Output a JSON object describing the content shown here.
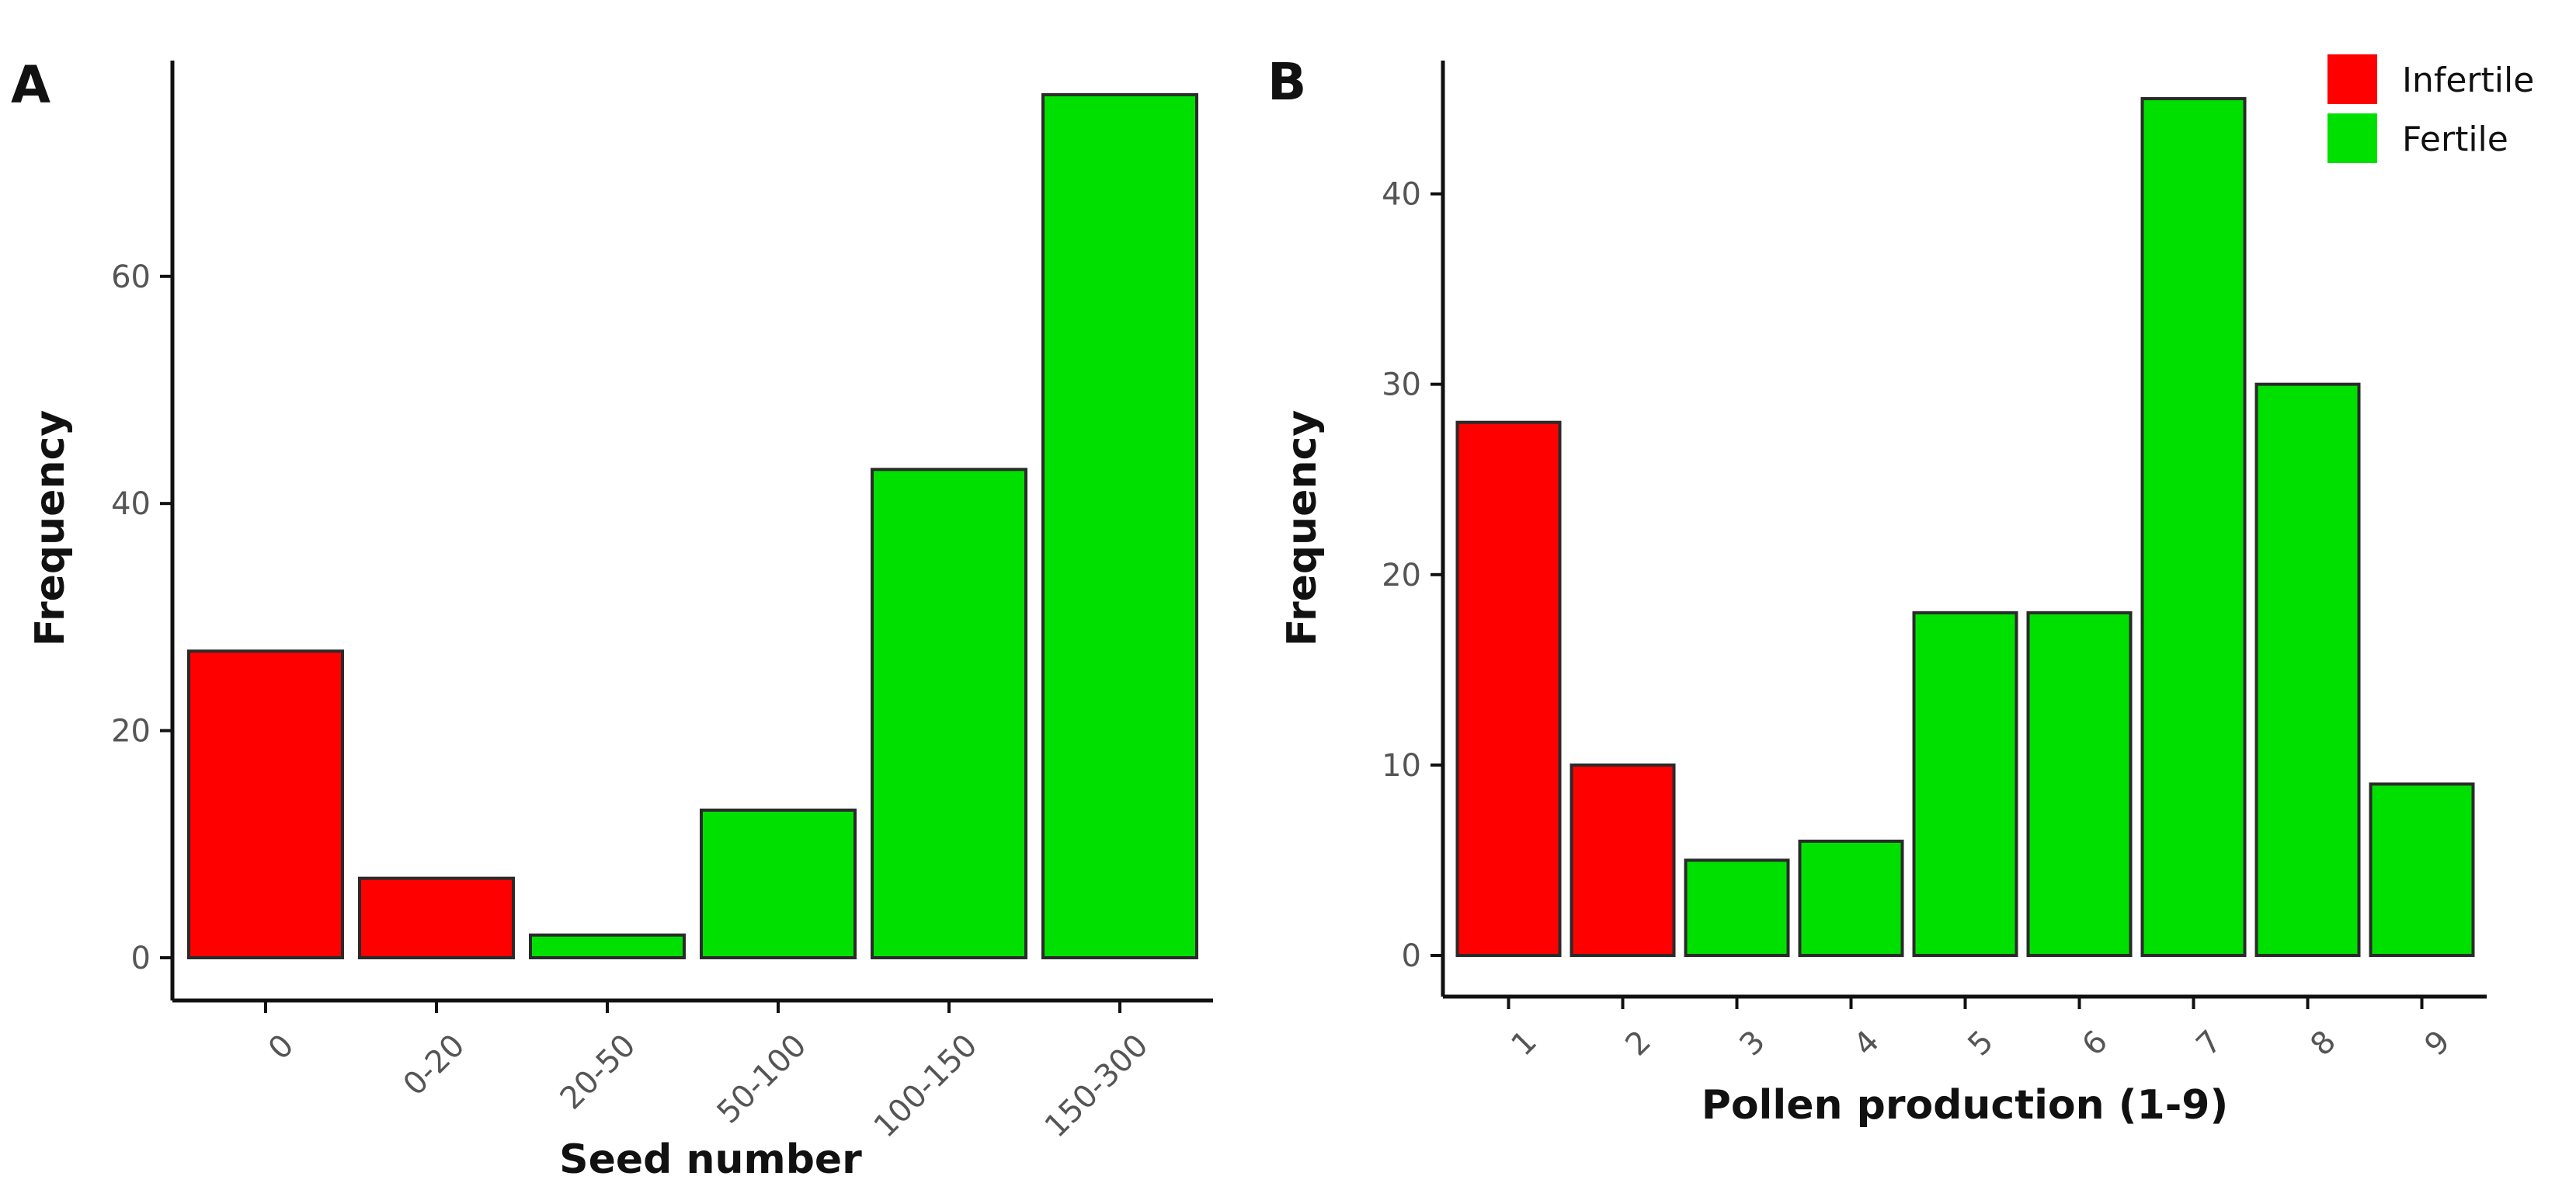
{
  "colors": {
    "infertile": "#ff0000",
    "fertile": "#00e000"
  },
  "legend": {
    "placement": "top-right of panel B",
    "entries": [
      {
        "label": "Infertile",
        "color": "#ff0000"
      },
      {
        "label": "Fertile",
        "color": "#00e000"
      }
    ]
  },
  "chart_data": [
    {
      "panel": "A",
      "type": "bar",
      "xlabel": "Seed number",
      "ylabel": "Frequency",
      "categories": [
        "0",
        "0-20",
        "20-50",
        "50-100",
        "100-150",
        "150-300"
      ],
      "values": [
        27,
        7,
        2,
        13,
        43,
        76
      ],
      "bar_groups": [
        "Infertile",
        "Infertile",
        "Fertile",
        "Fertile",
        "Fertile",
        "Fertile"
      ],
      "yticks": [
        0,
        20,
        40,
        60
      ],
      "ylim": [
        0,
        79
      ],
      "grid": false
    },
    {
      "panel": "B",
      "type": "bar",
      "xlabel": "Pollen production (1-9)",
      "ylabel": "Frequency",
      "categories": [
        "1",
        "2",
        "3",
        "4",
        "5",
        "6",
        "7",
        "8",
        "9"
      ],
      "values": [
        28,
        10,
        5,
        6,
        18,
        18,
        45,
        30,
        9
      ],
      "bar_groups": [
        "Infertile",
        "Infertile",
        "Fertile",
        "Fertile",
        "Fertile",
        "Fertile",
        "Fertile",
        "Fertile",
        "Fertile"
      ],
      "yticks": [
        0,
        10,
        20,
        30,
        40
      ],
      "ylim": [
        0,
        47
      ],
      "grid": false
    }
  ]
}
